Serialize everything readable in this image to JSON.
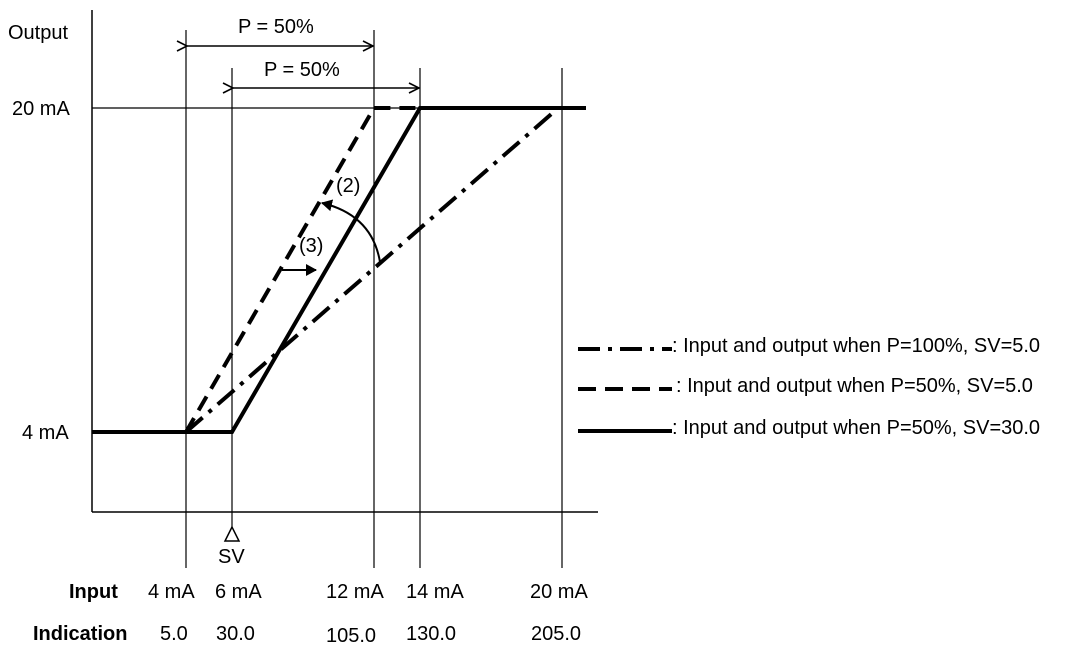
{
  "diagram": {
    "y_axis_title": "Output",
    "y_labels": {
      "top": "20 mA",
      "bottom": "4 mA"
    },
    "proportional_bands": [
      {
        "label": "P = 50%"
      },
      {
        "label": "P = 50%"
      }
    ],
    "annotations": {
      "two": "(2)",
      "three": "(3)"
    },
    "sv_marker": "SV",
    "row_titles": {
      "input": "Input",
      "indication": "Indication"
    },
    "columns": [
      {
        "input": "4 mA",
        "indication": "5.0"
      },
      {
        "input": "6 mA",
        "indication": "30.0"
      },
      {
        "input": "12 mA",
        "indication": "105.0"
      },
      {
        "input": "14 mA",
        "indication": "130.0"
      },
      {
        "input": "20 mA",
        "indication": "205.0"
      }
    ],
    "legend": [
      {
        "style": "dash-dot",
        "text": ": Input and output when P=100%, SV=5.0"
      },
      {
        "style": "dashed",
        "text": ": Input and output when P=50%, SV=5.0"
      },
      {
        "style": "solid",
        "text": ": Input and output when P=50%, SV=30.0"
      }
    ]
  }
}
